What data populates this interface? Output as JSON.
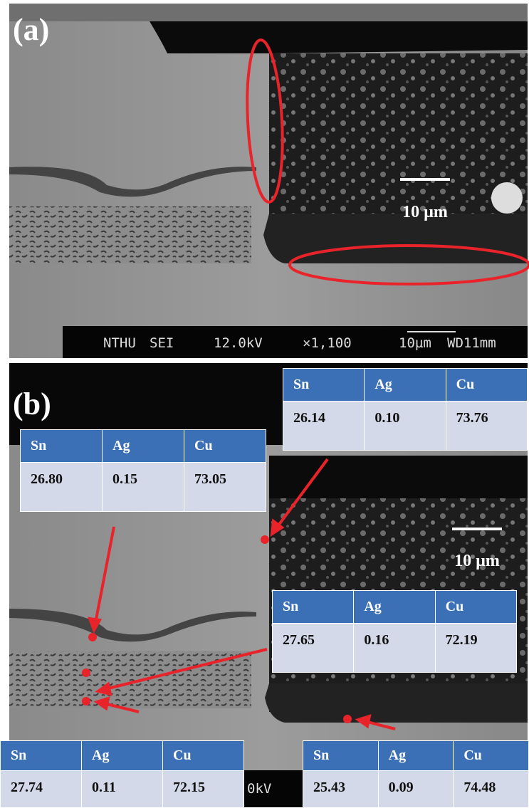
{
  "panels": [
    {
      "label": "(a)",
      "scale_bar": "10 µm",
      "info_bar": [
        "NTHU",
        "SEI",
        "12.0kV",
        "×1,100",
        "10µm",
        "WD11mm"
      ]
    },
    {
      "label": "(b)",
      "scale_bar": "10 µm",
      "info_fragment": "0kV",
      "tables": [
        {
          "header": [
            "Sn",
            "Ag",
            "Cu"
          ],
          "values": [
            "26.14",
            "0.10",
            "73.76"
          ]
        },
        {
          "header": [
            "Sn",
            "Ag",
            "Cu"
          ],
          "values": [
            "26.80",
            "0.15",
            "73.05"
          ]
        },
        {
          "header": [
            "Sn",
            "Ag",
            "Cu"
          ],
          "values": [
            "27.65",
            "0.16",
            "72.19"
          ]
        },
        {
          "header": [
            "Sn",
            "Ag",
            "Cu"
          ],
          "values": [
            "27.74",
            "0.11",
            "72.15"
          ]
        },
        {
          "header": [
            "Sn",
            "Ag",
            "Cu"
          ],
          "values": [
            "25.43",
            "0.09",
            "74.48"
          ]
        }
      ]
    }
  ]
}
